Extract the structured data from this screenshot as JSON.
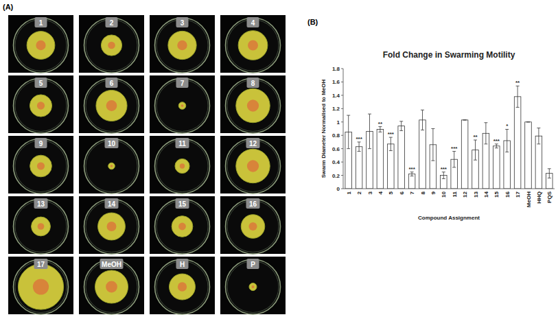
{
  "panel_labels": [
    "(A)",
    "(B)"
  ],
  "plates": {
    "labels": [
      "1",
      "2",
      "3",
      "4",
      "5",
      "6",
      "7",
      "8",
      "9",
      "10",
      "11",
      "12",
      "13",
      "14",
      "15",
      "16",
      "17",
      "MeOH",
      "H",
      "P"
    ]
  },
  "chart_data": {
    "type": "bar",
    "title": "Fold Change in Swarming Motility",
    "x_label": "Compound Assignment",
    "y_label": "Swarm Diameter  Normalised to MeOH",
    "categories": [
      "1",
      "2",
      "3",
      "4",
      "5",
      "6",
      "7",
      "8",
      "9",
      "10",
      "11",
      "12",
      "13",
      "14",
      "15",
      "16",
      "17",
      "MeOH",
      "HHQ",
      "PQS"
    ],
    "values": [
      0.85,
      0.63,
      0.86,
      0.89,
      0.67,
      0.94,
      0.22,
      1.03,
      0.66,
      0.2,
      0.44,
      1.03,
      0.58,
      0.83,
      0.64,
      0.72,
      1.38,
      1.0,
      0.79,
      0.23
    ],
    "errors": [
      0.25,
      0.07,
      0.26,
      0.04,
      0.1,
      0.07,
      0.03,
      0.15,
      0.24,
      0.05,
      0.12,
      0.0,
      0.15,
      0.16,
      0.03,
      0.17,
      0.16,
      0.0,
      0.12,
      0.07
    ],
    "annotations": [
      null,
      "***",
      null,
      "**",
      "***",
      null,
      "***",
      null,
      null,
      "***",
      "***",
      null,
      "**",
      null,
      "***",
      "*",
      "**",
      null,
      null,
      null
    ],
    "color": "#ffffff",
    "ylim": [
      0,
      1.8
    ],
    "yticks": [
      0,
      0.2,
      0.4,
      0.6,
      0.8,
      1,
      1.2,
      1.4,
      1.6,
      1.8
    ],
    "grid": false
  }
}
